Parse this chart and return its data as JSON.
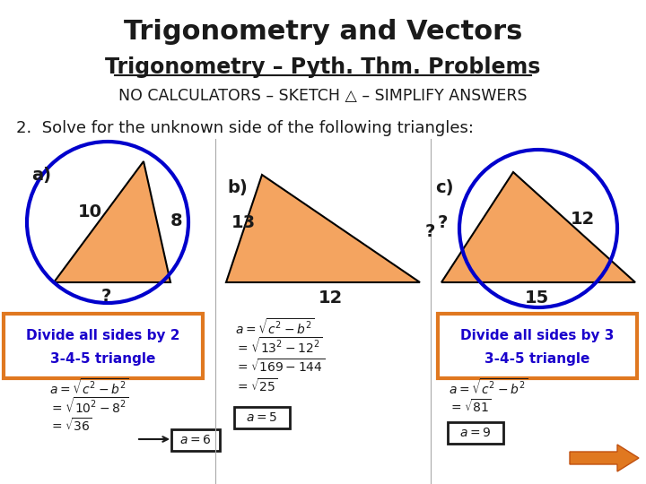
{
  "title": "Trigonometry and Vectors",
  "subtitle": "Trigonometry – Pyth. Thm. Problems",
  "subtitle2": "NO CALCULATORS – SKETCH △ – SIMPLIFY ANSWERS",
  "problem_text": "2.  Solve for the unknown side of the following triangles:",
  "bg_color": "#ffffff",
  "title_color": "#1a1a1a",
  "subtitle_color": "#1a1a1a",
  "triangle_fill": "#f4a460",
  "triangle_edge": "#000000",
  "circle_color": "#0000cc",
  "orange_box_color": "#e07820",
  "orange_box_text_color": "#1a00cc",
  "answer_box_color": "#000000",
  "math_color": "#1a1a1a",
  "arrow_color": "#e07820"
}
